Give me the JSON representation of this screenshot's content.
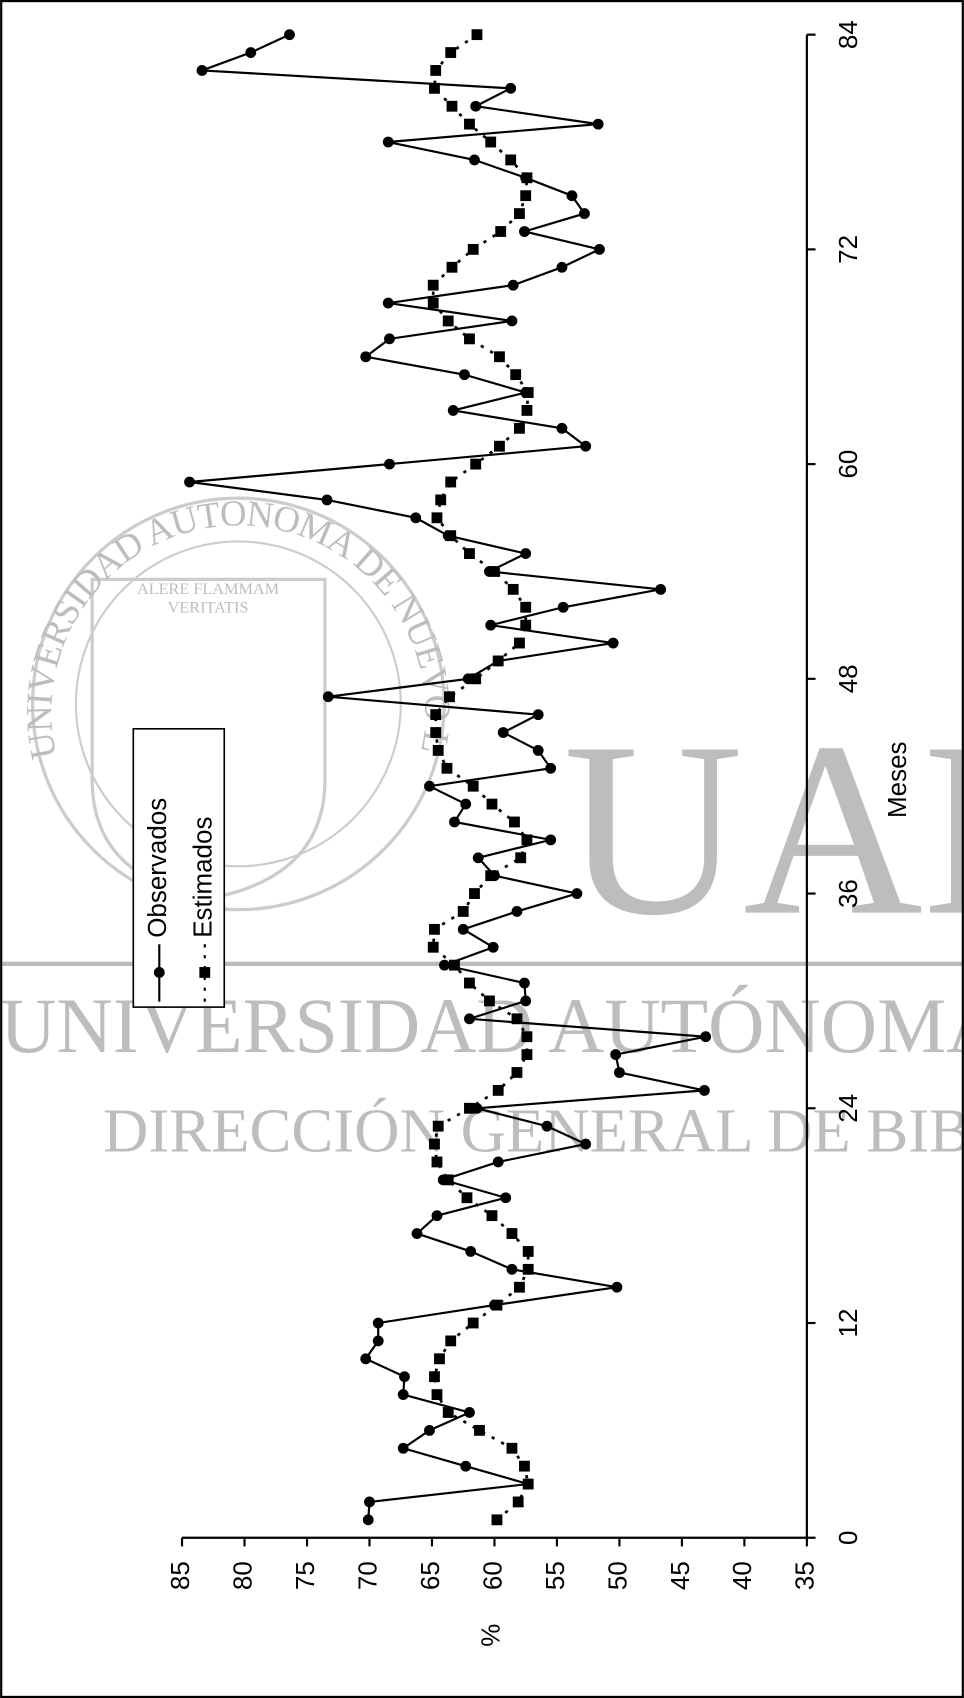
{
  "chart_data": {
    "type": "line",
    "x_label": "Meses",
    "y_label": "%",
    "x": [
      1,
      2,
      3,
      4,
      5,
      6,
      7,
      8,
      9,
      10,
      11,
      12,
      13,
      14,
      15,
      16,
      17,
      18,
      19,
      20,
      21,
      22,
      23,
      24,
      25,
      26,
      27,
      28,
      29,
      30,
      31,
      32,
      33,
      34,
      35,
      36,
      37,
      38,
      39,
      40,
      41,
      42,
      43,
      44,
      45,
      46,
      47,
      48,
      49,
      50,
      51,
      52,
      53,
      54,
      55,
      56,
      57,
      58,
      59,
      60,
      61,
      62,
      63,
      64,
      65,
      66,
      67,
      68,
      69,
      70,
      71,
      72,
      73,
      74,
      75,
      76,
      77,
      78,
      79,
      80,
      81,
      82,
      83,
      84
    ],
    "series": [
      {
        "name": "Observados",
        "color": "#000000",
        "marker": "circle",
        "dash": "solid",
        "values": [
          70.1,
          70,
          57.3,
          62.3,
          67.3,
          65.2,
          62,
          67.3,
          67.2,
          70.3,
          69.3,
          69.3,
          60,
          50.2,
          58.6,
          61.9,
          66.2,
          64.6,
          59.1,
          64.1,
          59.7,
          52.7,
          55.8,
          61.4,
          43.2,
          50,
          50.3,
          43.1,
          62,
          57.5,
          57.6,
          64,
          60.1,
          62.5,
          58.2,
          53.4,
          60,
          61.3,
          55.5,
          63.2,
          62.3,
          65.2,
          55.5,
          56.5,
          59.3,
          56.5,
          73.3,
          62.1,
          59.7,
          50.5,
          60.3,
          54.5,
          46.7,
          60.4,
          57.5,
          63.7,
          66.3,
          73.4,
          84.4,
          68.4,
          52.7,
          54.6,
          63.3,
          57.5,
          62.4,
          70.3,
          68.4,
          58.6,
          68.5,
          58.5,
          54.6,
          51.6,
          57.6,
          52.8,
          53.8,
          57.5,
          61.6,
          68.5,
          51.7,
          61.5,
          58.7,
          83.4,
          79.5,
          76.4
        ]
      },
      {
        "name": "Estimados",
        "color": "#000000",
        "marker": "square",
        "dash": "dotted",
        "values": [
          59.8,
          58.1,
          57.3,
          57.6,
          58.6,
          61.2,
          63.7,
          64.6,
          64.8,
          64.4,
          63.5,
          61.7,
          59.8,
          58,
          57.3,
          57.3,
          58.6,
          60.2,
          62.2,
          63.7,
          64.6,
          64.8,
          64.5,
          62,
          59.7,
          58.2,
          57.4,
          57.4,
          58.2,
          60.4,
          62,
          63.2,
          64.9,
          64.8,
          62.5,
          61.6,
          60.3,
          57.9,
          57.4,
          58.4,
          60.2,
          61.7,
          63.8,
          64.5,
          64.7,
          64.7,
          63.6,
          61.5,
          59.7,
          58,
          57.5,
          57.5,
          58.5,
          60,
          62,
          63.5,
          64.6,
          64.3,
          63.5,
          61.5,
          59.6,
          58,
          57.4,
          57.3,
          58.3,
          59.6,
          62,
          63.7,
          64.9,
          64.9,
          63.4,
          61.7,
          59.5,
          58,
          57.5,
          57.4,
          58.7,
          60.3,
          62,
          63.4,
          64.8,
          64.7,
          63.5,
          61.4
        ]
      }
    ],
    "xlim": [
      0,
      84
    ],
    "xticks": [
      0,
      12,
      24,
      36,
      48,
      60,
      72,
      84
    ],
    "ylim": [
      35,
      85
    ],
    "yticks": [
      35,
      40,
      45,
      50,
      55,
      60,
      65,
      70,
      75,
      80,
      85
    ],
    "orientation": "rotated",
    "legend": "left"
  },
  "watermark": {
    "ring": "UNIVERSIDAD AUTONOMA DE NUEVO LEON",
    "motto_1": "ALERE FLAMMAM",
    "motto_2": "VERITATIS",
    "logo": "UANL",
    "line_1": "UNIVERSIDAD AUTÓNOMA DE NUE",
    "line_2": "DIRECCIÓN GENERAL DE BIBLIOT"
  }
}
